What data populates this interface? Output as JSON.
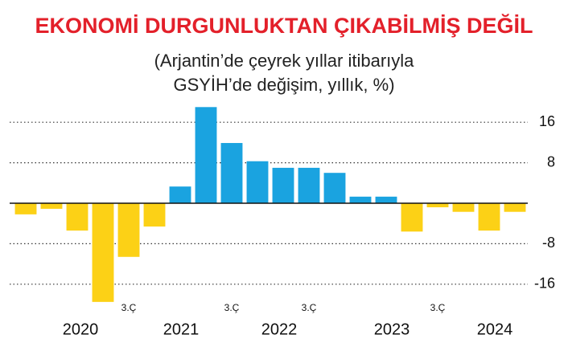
{
  "chart_data": {
    "type": "bar",
    "title": "EKONOMİ DURGUNLUKTAN ÇIKABİLMİŞ DEĞİL",
    "subtitle": [
      "(Arjantin’de çeyrek yıllar itibarıyla",
      "GSYİH’de değişim, yıllık, %)"
    ],
    "categories": [
      null,
      null,
      null,
      null,
      "3.Ç",
      null,
      null,
      null,
      "3.Ç",
      null,
      null,
      "3.Ç",
      null,
      null,
      null,
      null,
      "3.Ç",
      null,
      null,
      null
    ],
    "values": [
      -2.2,
      -1.1,
      -5.4,
      -19.5,
      -10.6,
      -4.6,
      3.3,
      19.0,
      11.9,
      8.3,
      7.0,
      7.0,
      6.0,
      1.3,
      1.3,
      -5.6,
      -0.8,
      -1.7,
      -5.4,
      -1.7
    ],
    "years": [
      "2020",
      "2021",
      "2022",
      "2023",
      "2024"
    ],
    "positive_color": "#1aa3e0",
    "negative_color": "#fcd116",
    "ylim": [
      -20,
      20
    ],
    "yticks": [
      -16,
      -8,
      8,
      16
    ],
    "grid": true
  }
}
